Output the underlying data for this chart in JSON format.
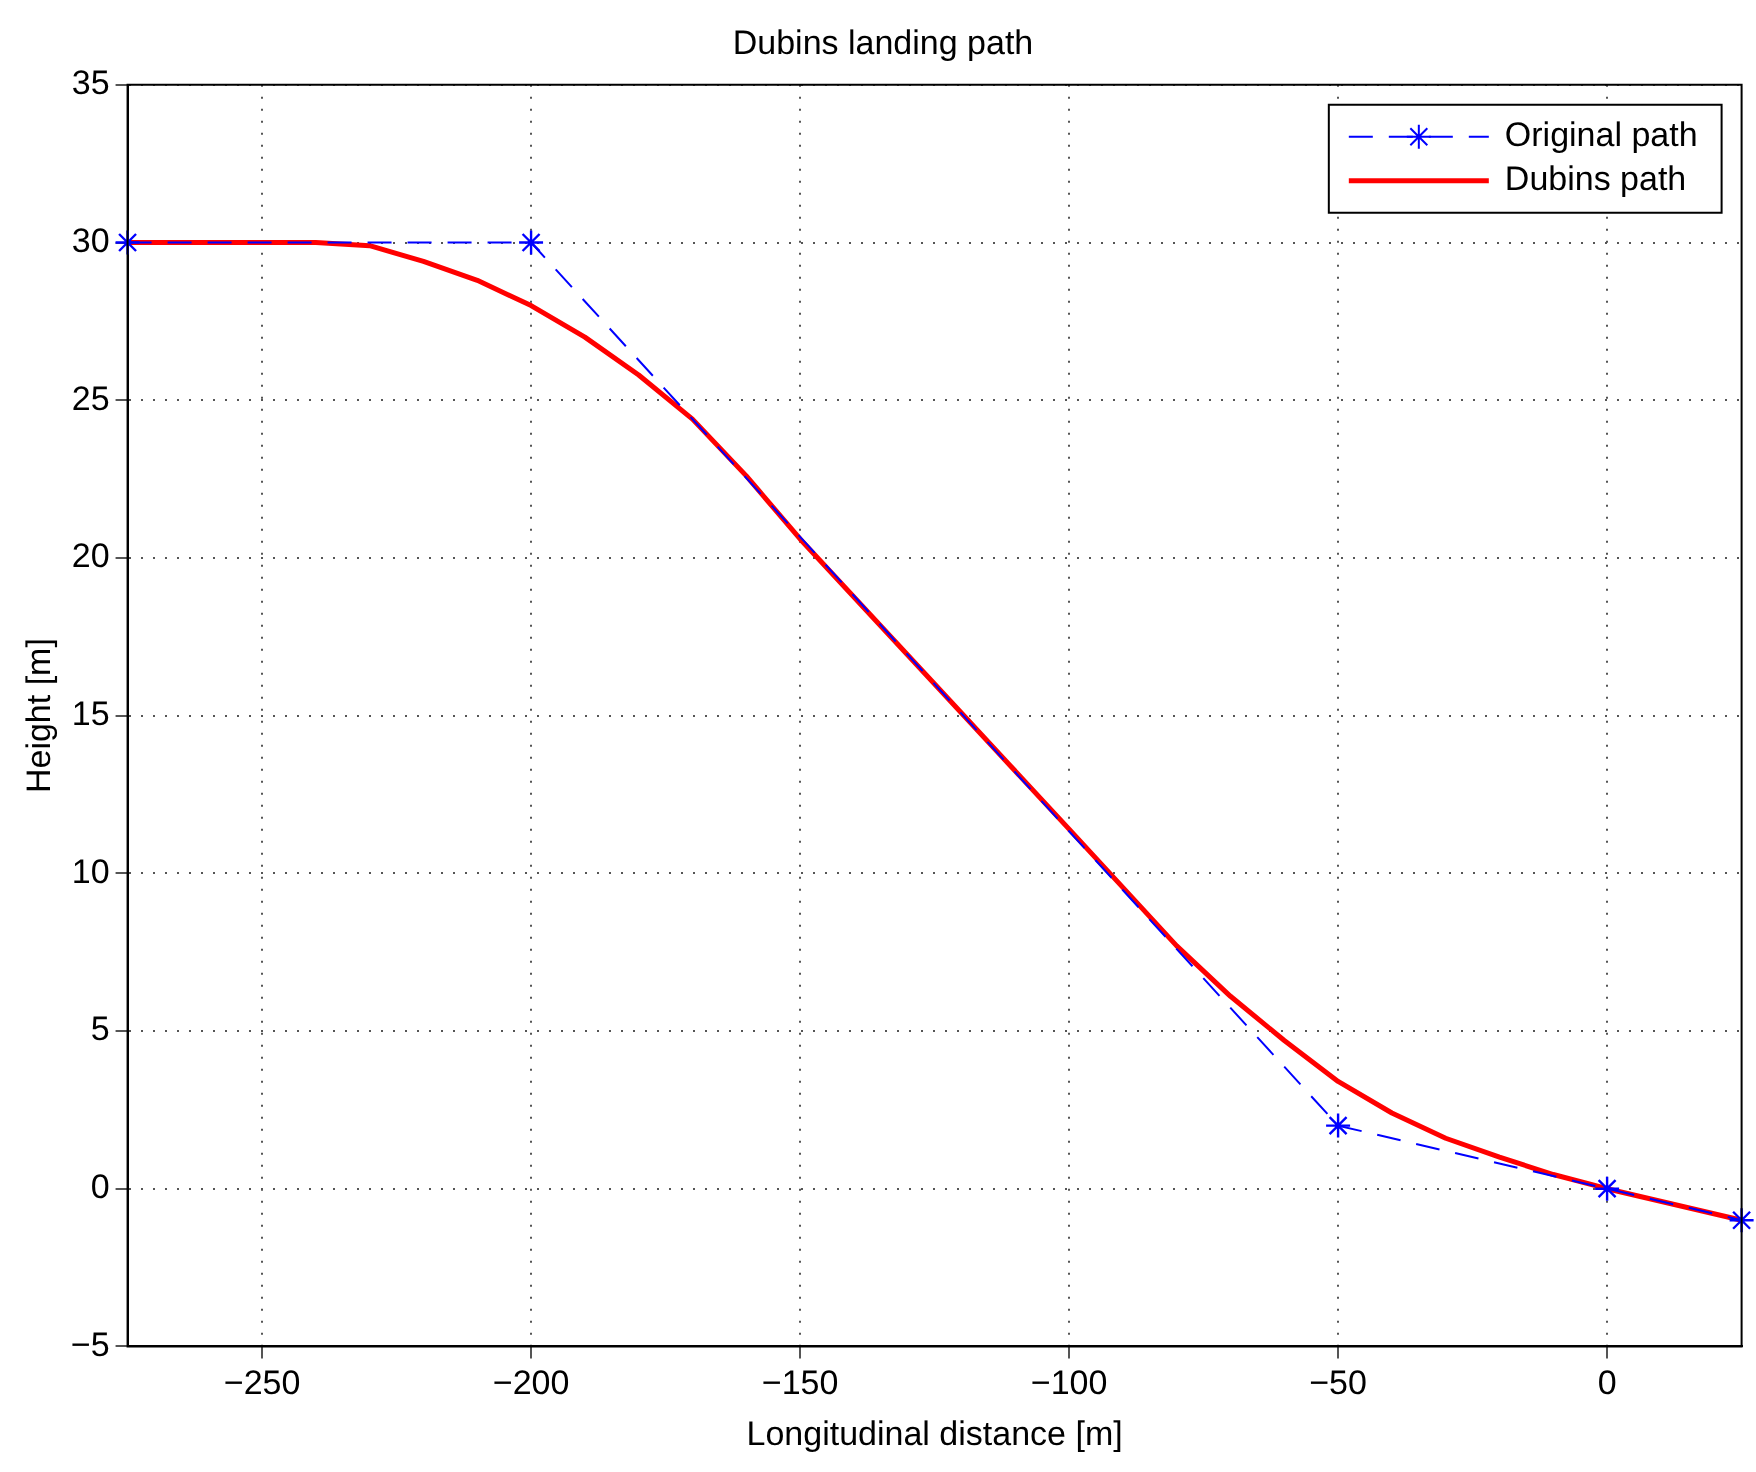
{
  "chart_data": {
    "type": "line",
    "title": "Dubins landing path",
    "xlabel": "Longitudinal distance [m]",
    "ylabel": "Height [m]",
    "xlim": [
      -275,
      25
    ],
    "xticks": [
      -250,
      -200,
      -150,
      -100,
      -50,
      0
    ],
    "ylim": [
      -5,
      35
    ],
    "yticks": [
      -5,
      0,
      5,
      10,
      15,
      20,
      25,
      30,
      35
    ],
    "grid": true,
    "legend": "top right",
    "series": [
      {
        "name": "Original path",
        "color": "#0000ff",
        "marker": "cross",
        "line_style": "dashed",
        "x": [
          -275,
          -200,
          -50,
          0,
          25
        ],
        "values": [
          30,
          30,
          2,
          0,
          -1
        ]
      },
      {
        "name": "Dubins path",
        "color": "#ff0000",
        "marker": "none",
        "line_style": "solid",
        "x": [
          -275,
          -240,
          -230,
          -220,
          -210,
          -200,
          -190,
          -180,
          -170,
          -160,
          -150,
          -125,
          -100,
          -80,
          -70,
          -60,
          -50,
          -40,
          -30,
          -20,
          -10,
          0,
          25
        ],
        "values": [
          30,
          30,
          29.9,
          29.4,
          28.8,
          28.0,
          27.0,
          25.8,
          24.4,
          22.6,
          20.6,
          16.0,
          11.4,
          7.7,
          6.1,
          4.7,
          3.4,
          2.4,
          1.6,
          1.0,
          0.45,
          0,
          -1
        ]
      }
    ]
  }
}
